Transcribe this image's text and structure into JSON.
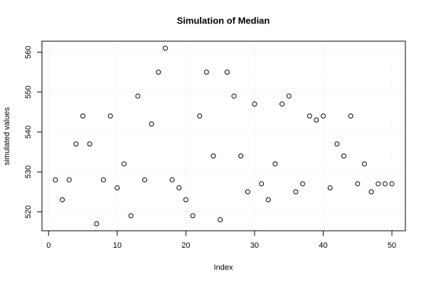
{
  "chart_data": {
    "type": "scatter",
    "title": "Simulation of Median",
    "x_label": "Index",
    "y_label": "simulated values",
    "x": [
      1,
      2,
      3,
      4,
      5,
      6,
      7,
      8,
      9,
      10,
      11,
      12,
      13,
      14,
      15,
      16,
      17,
      18,
      19,
      20,
      21,
      22,
      23,
      24,
      25,
      26,
      27,
      28,
      29,
      30,
      31,
      32,
      33,
      34,
      35,
      36,
      37,
      38,
      39,
      40,
      41,
      42,
      43,
      44,
      45,
      46,
      47,
      48,
      49,
      50
    ],
    "values": [
      528,
      523,
      528,
      537,
      544,
      537,
      517,
      528,
      544,
      526,
      532,
      519,
      549,
      528,
      542,
      555,
      561,
      528,
      526,
      523,
      519,
      544,
      555,
      534,
      518,
      555,
      549,
      534,
      525,
      547,
      527,
      523,
      532,
      547,
      549,
      525,
      527,
      544,
      543,
      544,
      526,
      537,
      534,
      544,
      527,
      532,
      525,
      527,
      527,
      527
    ],
    "color": "#000000",
    "xlim": [
      -0.96,
      51.96
    ],
    "xticks": [
      0,
      10,
      20,
      30,
      40,
      50
    ],
    "ylim": [
      515.24,
      562.76
    ],
    "yticks": [
      520,
      530,
      540,
      550,
      560
    ],
    "grid": true
  }
}
